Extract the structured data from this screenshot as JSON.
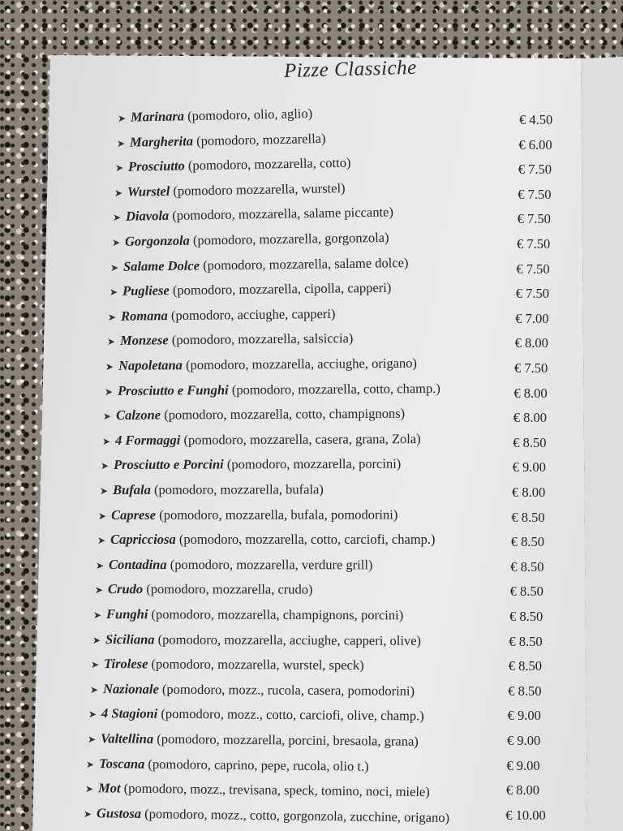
{
  "menu": {
    "title": "Pizze Classiche",
    "bullet_icon": "arrowhead-bullet-icon",
    "items": [
      {
        "name": "Marinara",
        "ingredients": "(pomodoro, olio, aglio)",
        "price": "€ 4.50"
      },
      {
        "name": "Margherita",
        "ingredients": "(pomodoro, mozzarella)",
        "price": "€ 6.00"
      },
      {
        "name": "Prosciutto",
        "ingredients": "(pomodoro, mozzarella, cotto)",
        "price": "€ 7.50"
      },
      {
        "name": "Wurstel",
        "ingredients": "(pomodoro mozzarella, wurstel)",
        "price": "€ 7.50"
      },
      {
        "name": "Diavola",
        "ingredients": "(pomodoro, mozzarella, salame piccante)",
        "price": "€ 7.50"
      },
      {
        "name": "Gorgonzola",
        "ingredients": "(pomodoro, mozzarella, gorgonzola)",
        "price": "€ 7.50"
      },
      {
        "name": "Salame Dolce",
        "ingredients": "(pomodoro, mozzarella, salame dolce)",
        "price": "€ 7.50"
      },
      {
        "name": "Pugliese",
        "ingredients": "(pomodoro, mozzarella, cipolla, capperi)",
        "price": "€ 7.50"
      },
      {
        "name": "Romana",
        "ingredients": "(pomodoro, acciughe, capperi)",
        "price": "€ 7.00"
      },
      {
        "name": "Monzese",
        "ingredients": "(pomodoro, mozzarella, salsiccia)",
        "price": "€ 8.00"
      },
      {
        "name": "Napoletana",
        "ingredients": "(pomodoro, mozzarella, acciughe, origano)",
        "price": "€ 7.50"
      },
      {
        "name": "Prosciutto e Funghi",
        "ingredients": "(pomodoro, mozzarella, cotto, champ.)",
        "price": "€ 8.00"
      },
      {
        "name": "Calzone",
        "ingredients": "(pomodoro, mozzarella, cotto, champignons)",
        "price": "€ 8.00"
      },
      {
        "name": "4 Formaggi",
        "ingredients": "(pomodoro, mozzarella, casera, grana, Zola)",
        "price": "€ 8.50"
      },
      {
        "name": "Prosciutto e Porcini",
        "ingredients": "(pomodoro, mozzarella, porcini)",
        "price": "€ 9.00"
      },
      {
        "name": "Bufala",
        "ingredients": "(pomodoro, mozzarella, bufala)",
        "price": "€ 8.00"
      },
      {
        "name": "Caprese",
        "ingredients": "(pomodoro, mozzarella, bufala, pomodorini)",
        "price": "€ 8.50"
      },
      {
        "name": "Capricciosa",
        "ingredients": "(pomodoro, mozzarella, cotto, carciofi, champ.)",
        "price": "€ 8.50"
      },
      {
        "name": "Contadina",
        "ingredients": "(pomodoro, mozzarella, verdure grill)",
        "price": "€ 8.50"
      },
      {
        "name": "Crudo",
        "ingredients": "(pomodoro, mozzarella, crudo)",
        "price": "€ 8.50"
      },
      {
        "name": "Funghi",
        "ingredients": "(pomodoro, mozzarella, champignons, porcini)",
        "price": "€ 8.50"
      },
      {
        "name": "Siciliana",
        "ingredients": "(pomodoro, mozzarella, acciughe, capperi, olive)",
        "price": "€ 8.50"
      },
      {
        "name": "Tirolese",
        "ingredients": "(pomodoro, mozzarella, wurstel, speck)",
        "price": "€ 8.50"
      },
      {
        "name": "Nazionale",
        "ingredients": "(pomodoro, mozz., rucola, casera, pomodorini)",
        "price": "€ 8.50"
      },
      {
        "name": "4 Stagioni",
        "ingredients": "(pomodoro, mozz., cotto, carciofi, olive, champ.)",
        "price": "€ 9.00"
      },
      {
        "name": "Valtellina",
        "ingredients": "(pomodoro, mozzarella, porcini, bresaola, grana)",
        "price": "€ 9.00"
      },
      {
        "name": "Toscana",
        "ingredients": "(pomodoro, caprino, pepe, rucola, olio t.)",
        "price": "€ 9.00"
      },
      {
        "name": "Mot",
        "ingredients": "(pomodoro, mozz., trevisana, speck, tomino, noci, miele)",
        "price": "€ 8.00"
      },
      {
        "name": "Gustosa",
        "ingredients": "(pomodoro, mozz., cotto, gorgonzola, zucchine, origano)",
        "price": "€ 10.00"
      }
    ]
  }
}
